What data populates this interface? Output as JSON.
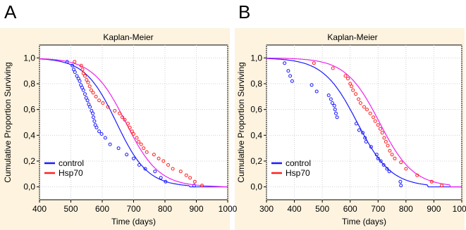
{
  "panels": [
    {
      "letter": "A",
      "chart_data": {
        "type": "scatter",
        "title": "Kaplan-Meier",
        "xlabel": "Time (days)",
        "ylabel": "Cumulative Proportion Surviving",
        "xlim": [
          400,
          1000
        ],
        "ylim": [
          -0.1,
          1.1
        ],
        "xticks": [
          "400",
          "500",
          "600",
          "700",
          "800",
          "900",
          "1000"
        ],
        "yticks": [
          "0,0",
          "0,2",
          "0,4",
          "0,6",
          "0,8",
          "1,0"
        ],
        "grid": true,
        "legend_position": "bottom-left",
        "series": [
          {
            "name": "control",
            "color": "#1a1aff",
            "points": [
              [
                488,
                0.97
              ],
              [
                505,
                0.94
              ],
              [
                509,
                0.91
              ],
              [
                513,
                0.89
              ],
              [
                519,
                0.86
              ],
              [
                524,
                0.84
              ],
              [
                528,
                0.82
              ],
              [
                532,
                0.79
              ],
              [
                536,
                0.77
              ],
              [
                540,
                0.75
              ],
              [
                545,
                0.72
              ],
              [
                549,
                0.69
              ],
              [
                553,
                0.67
              ],
              [
                557,
                0.64
              ],
              [
                561,
                0.62
              ],
              [
                566,
                0.59
              ],
              [
                570,
                0.57
              ],
              [
                572,
                0.54
              ],
              [
                575,
                0.51
              ],
              [
                578,
                0.48
              ],
              [
                582,
                0.46
              ],
              [
                590,
                0.43
              ],
              [
                598,
                0.41
              ],
              [
                610,
                0.38
              ],
              [
                625,
                0.33
              ],
              [
                652,
                0.3
              ],
              [
                678,
                0.25
              ],
              [
                700,
                0.22
              ],
              [
                718,
                0.17
              ],
              [
                737,
                0.14
              ],
              [
                768,
                0.12
              ],
              [
                787,
                0.07
              ],
              [
                802,
                0.04
              ],
              [
                893,
                0.01
              ]
            ],
            "fit": {
              "median": 645,
              "slope": 0.02,
              "x_end": 880
            }
          },
          {
            "name": "Hsp70",
            "color": "#ff2020",
            "points": [
              [
                512,
                0.97
              ],
              [
                533,
                0.94
              ],
              [
                537,
                0.91
              ],
              [
                540,
                0.88
              ],
              [
                545,
                0.86
              ],
              [
                550,
                0.83
              ],
              [
                555,
                0.81
              ],
              [
                560,
                0.78
              ],
              [
                565,
                0.75
              ],
              [
                571,
                0.73
              ],
              [
                580,
                0.7
              ],
              [
                590,
                0.67
              ],
              [
                602,
                0.65
              ],
              [
                618,
                0.62
              ],
              [
                640,
                0.59
              ],
              [
                655,
                0.57
              ],
              [
                664,
                0.54
              ],
              [
                672,
                0.52
              ],
              [
                682,
                0.49
              ],
              [
                688,
                0.46
              ],
              [
                695,
                0.43
              ],
              [
                700,
                0.41
              ],
              [
                710,
                0.38
              ],
              [
                716,
                0.35
              ],
              [
                724,
                0.33
              ],
              [
                732,
                0.3
              ],
              [
                742,
                0.27
              ],
              [
                765,
                0.25
              ],
              [
                780,
                0.22
              ],
              [
                795,
                0.2
              ],
              [
                810,
                0.17
              ],
              [
                825,
                0.14
              ],
              [
                850,
                0.12
              ],
              [
                868,
                0.09
              ],
              [
                880,
                0.07
              ],
              [
                895,
                0.04
              ],
              [
                918,
                0.01
              ]
            ],
            "fit": {
              "median": 675,
              "slope": 0.019,
              "x_end": 930
            }
          }
        ]
      }
    },
    {
      "letter": "B",
      "chart_data": {
        "type": "scatter",
        "title": "Kaplan-Meier",
        "xlabel": "Time (days)",
        "ylabel": "Cumulative Proportion Surviving",
        "xlim": [
          300,
          1000
        ],
        "ylim": [
          -0.1,
          1.1
        ],
        "xticks": [
          "300",
          "400",
          "500",
          "600",
          "700",
          "800",
          "900",
          "1000"
        ],
        "yticks": [
          "0,0",
          "0,2",
          "0,4",
          "0,6",
          "0,8",
          "1,0"
        ],
        "grid": true,
        "legend_position": "bottom-left",
        "series": [
          {
            "name": "control",
            "color": "#1a1aff",
            "points": [
              [
                365,
                0.96
              ],
              [
                378,
                0.9
              ],
              [
                385,
                0.86
              ],
              [
                392,
                0.82
              ],
              [
                462,
                0.79
              ],
              [
                480,
                0.74
              ],
              [
                523,
                0.71
              ],
              [
                531,
                0.68
              ],
              [
                536,
                0.65
              ],
              [
                543,
                0.63
              ],
              [
                546,
                0.6
              ],
              [
                549,
                0.57
              ],
              [
                553,
                0.54
              ],
              [
                622,
                0.49
              ],
              [
                632,
                0.44
              ],
              [
                645,
                0.42
              ],
              [
                653,
                0.38
              ],
              [
                657,
                0.35
              ],
              [
                675,
                0.31
              ],
              [
                695,
                0.25
              ],
              [
                700,
                0.22
              ],
              [
                710,
                0.2
              ],
              [
                720,
                0.17
              ],
              [
                732,
                0.14
              ],
              [
                740,
                0.12
              ],
              [
                780,
                0.04
              ],
              [
                782,
                0.01
              ]
            ],
            "fit": {
              "median": 625,
              "slope": 0.0165,
              "x_end": 880
            }
          },
          {
            "name": "Hsp70",
            "color": "#ff2020",
            "points": [
              [
                470,
                0.96
              ],
              [
                538,
                0.92
              ],
              [
                583,
                0.86
              ],
              [
                592,
                0.84
              ],
              [
                600,
                0.8
              ],
              [
                605,
                0.78
              ],
              [
                610,
                0.75
              ],
              [
                620,
                0.72
              ],
              [
                630,
                0.68
              ],
              [
                637,
                0.65
              ],
              [
                650,
                0.62
              ],
              [
                660,
                0.6
              ],
              [
                672,
                0.57
              ],
              [
                683,
                0.54
              ],
              [
                690,
                0.51
              ],
              [
                700,
                0.48
              ],
              [
                708,
                0.45
              ],
              [
                715,
                0.42
              ],
              [
                722,
                0.38
              ],
              [
                728,
                0.35
              ],
              [
                735,
                0.32
              ],
              [
                742,
                0.28
              ],
              [
                750,
                0.25
              ],
              [
                760,
                0.22
              ],
              [
                782,
                0.19
              ],
              [
                800,
                0.14
              ],
              [
                840,
                0.09
              ],
              [
                892,
                0.04
              ],
              [
                928,
                0.01
              ]
            ],
            "fit": {
              "median": 705,
              "slope": 0.0165,
              "x_end": 960
            }
          }
        ]
      }
    }
  ],
  "colors": {
    "panel_background": "#fdf3df",
    "plot_background": "#ffffff",
    "grid": "#d0d0d0",
    "control_line": "#1a1aff",
    "hsp70_line": "#ee22ee"
  }
}
